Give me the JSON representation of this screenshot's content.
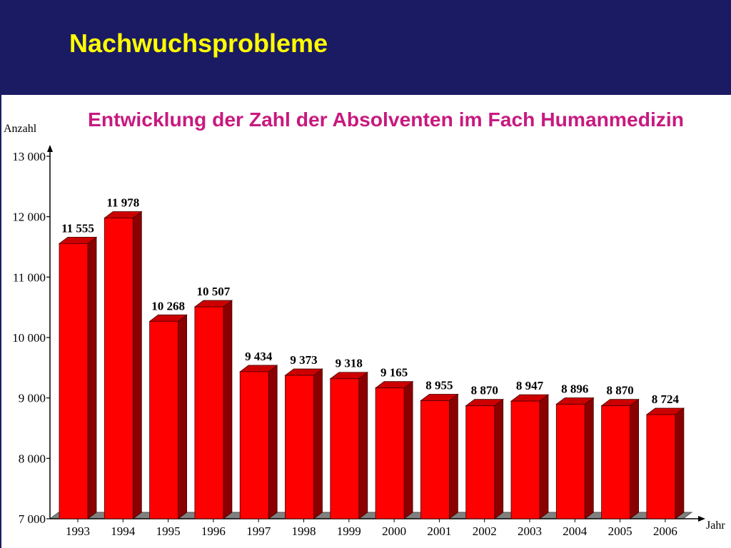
{
  "slide": {
    "title": "Nachwuchsprobleme"
  },
  "colors": {
    "background": "#1b1b63",
    "title": "#ffff00",
    "chart_title": "#c8197f",
    "bar_front": "#ff0000",
    "bar_top": "#cc0000",
    "bar_side": "#8a0000",
    "floor": "#808080"
  },
  "chart_data": {
    "type": "bar",
    "title": "Entwicklung der Zahl der Absolventen im Fach Humanmedizin",
    "xlabel": "Jahr",
    "ylabel": "Anzahl",
    "categories": [
      "1993",
      "1994",
      "1995",
      "1996",
      "1997",
      "1998",
      "1999",
      "2000",
      "2001",
      "2002",
      "2003",
      "2004",
      "2005",
      "2006"
    ],
    "values": [
      11555,
      11978,
      10268,
      10507,
      9434,
      9373,
      9318,
      9165,
      8955,
      8870,
      8947,
      8896,
      8870,
      8724
    ],
    "value_labels": [
      "11 555",
      "11 978",
      "10 268",
      "10 507",
      "9 434",
      "9 373",
      "9 318",
      "9 165",
      "8 955",
      "8 870",
      "8 947",
      "8 896",
      "8 870",
      "8 724"
    ],
    "ylim": [
      7000,
      13000
    ],
    "yticks": [
      7000,
      8000,
      9000,
      10000,
      11000,
      12000,
      13000
    ],
    "ytick_labels": [
      "7 000",
      "8 000",
      "9 000",
      "10 000",
      "11 000",
      "12 000",
      "13 000"
    ],
    "style": "3d-bar",
    "grid": false,
    "legend": "none"
  }
}
